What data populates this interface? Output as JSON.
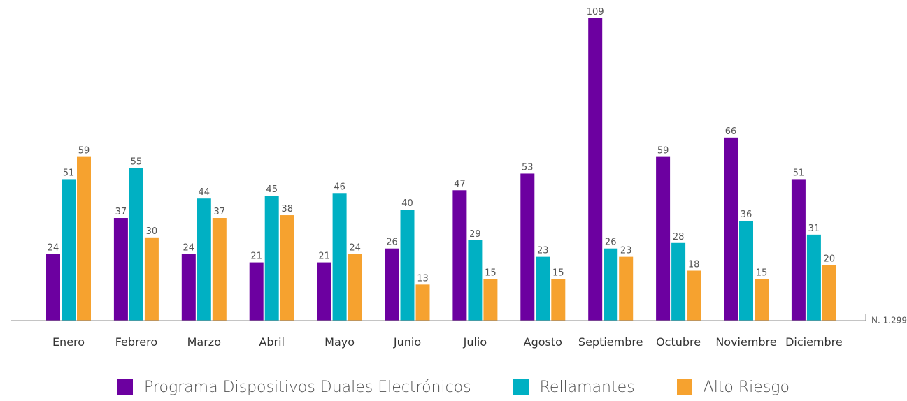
{
  "chart_data": {
    "type": "bar",
    "categories": [
      "Enero",
      "Febrero",
      "Marzo",
      "Abril",
      "Mayo",
      "Junio",
      "Julio",
      "Agosto",
      "Septiembre",
      "Octubre",
      "Noviembre",
      "Diciembre"
    ],
    "series": [
      {
        "name": "Programa Dispositivos Duales Electrónicos",
        "color": "#6c00a0",
        "values": [
          24,
          37,
          24,
          21,
          21,
          26,
          47,
          53,
          109,
          59,
          66,
          51
        ]
      },
      {
        "name": "Rellamantes",
        "color": "#00b0c3",
        "values": [
          51,
          55,
          44,
          45,
          46,
          40,
          29,
          23,
          26,
          28,
          36,
          31
        ]
      },
      {
        "name": "Alto Riesgo",
        "color": "#f6a22f",
        "values": [
          59,
          30,
          37,
          38,
          24,
          13,
          15,
          15,
          23,
          18,
          15,
          20
        ]
      }
    ],
    "note": "N. 1.299",
    "ylim": [
      0,
      109
    ],
    "grid": false,
    "legend_position": "bottom"
  }
}
